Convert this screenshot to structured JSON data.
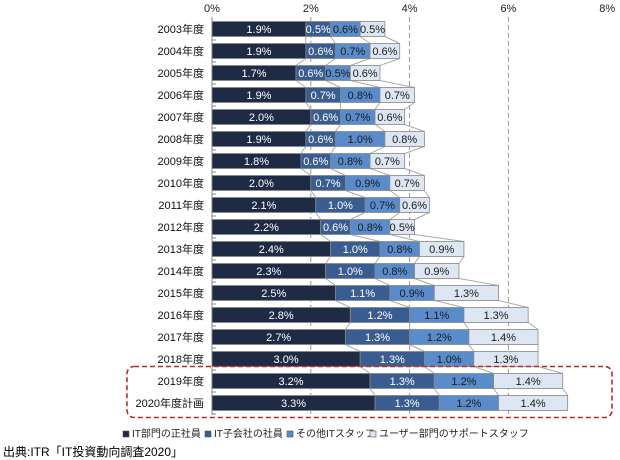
{
  "chart_data": {
    "type": "bar",
    "orientation": "horizontal",
    "stacked": true,
    "categories": [
      "2003年度",
      "2004年度",
      "2005年度",
      "2006年度",
      "2007年度",
      "2008年度",
      "2009年度",
      "2010年度",
      "2011年度",
      "2012年度",
      "2013年度",
      "2014年度",
      "2015年度",
      "2016年度",
      "2017年度",
      "2018年度",
      "2019年度",
      "2020年度計画"
    ],
    "series": [
      {
        "name": "IT部門の正社員",
        "color": "#1f2a45",
        "label_color": "#ffffff",
        "values": [
          1.9,
          1.9,
          1.7,
          1.9,
          2.0,
          1.9,
          1.8,
          2.0,
          2.1,
          2.2,
          2.4,
          2.3,
          2.5,
          2.8,
          2.7,
          3.0,
          3.2,
          3.3
        ]
      },
      {
        "name": "IT子会社の社員",
        "color": "#3a5d91",
        "label_color": "#ffffff",
        "values": [
          0.5,
          0.6,
          0.6,
          0.7,
          0.6,
          0.6,
          0.6,
          0.7,
          1.0,
          0.6,
          1.0,
          1.0,
          1.1,
          1.2,
          1.3,
          1.3,
          1.3,
          1.3
        ]
      },
      {
        "name": "その他ITスタッフ",
        "color": "#5a8ccb",
        "label_color": "#1a1a1a",
        "values": [
          0.6,
          0.7,
          0.5,
          0.8,
          0.7,
          1.0,
          0.8,
          0.9,
          0.7,
          0.8,
          0.8,
          0.8,
          0.9,
          1.1,
          1.2,
          1.0,
          1.2,
          1.2
        ]
      },
      {
        "name": "ユーザー部門のサポートスタッフ",
        "color": "#dde6f3",
        "label_color": "#1a1a1a",
        "values": [
          0.5,
          0.6,
          0.6,
          0.7,
          0.6,
          0.8,
          0.7,
          0.7,
          0.6,
          0.5,
          0.9,
          0.9,
          1.3,
          1.3,
          1.4,
          1.3,
          1.4,
          1.4
        ]
      }
    ],
    "xlim": [
      0,
      8
    ],
    "xticks": [
      "0%",
      "2%",
      "4%",
      "6%",
      "8%"
    ],
    "tick_positions": [
      0,
      2,
      4,
      6,
      8
    ],
    "grid": "vertical dashed",
    "legend": "bottom",
    "highlight": {
      "categories": [
        "2019年度",
        "2020年度計画"
      ],
      "color": "#c0282d",
      "style": "dashed"
    },
    "source": "出典:ITR「IT投資動向調査2020」"
  }
}
